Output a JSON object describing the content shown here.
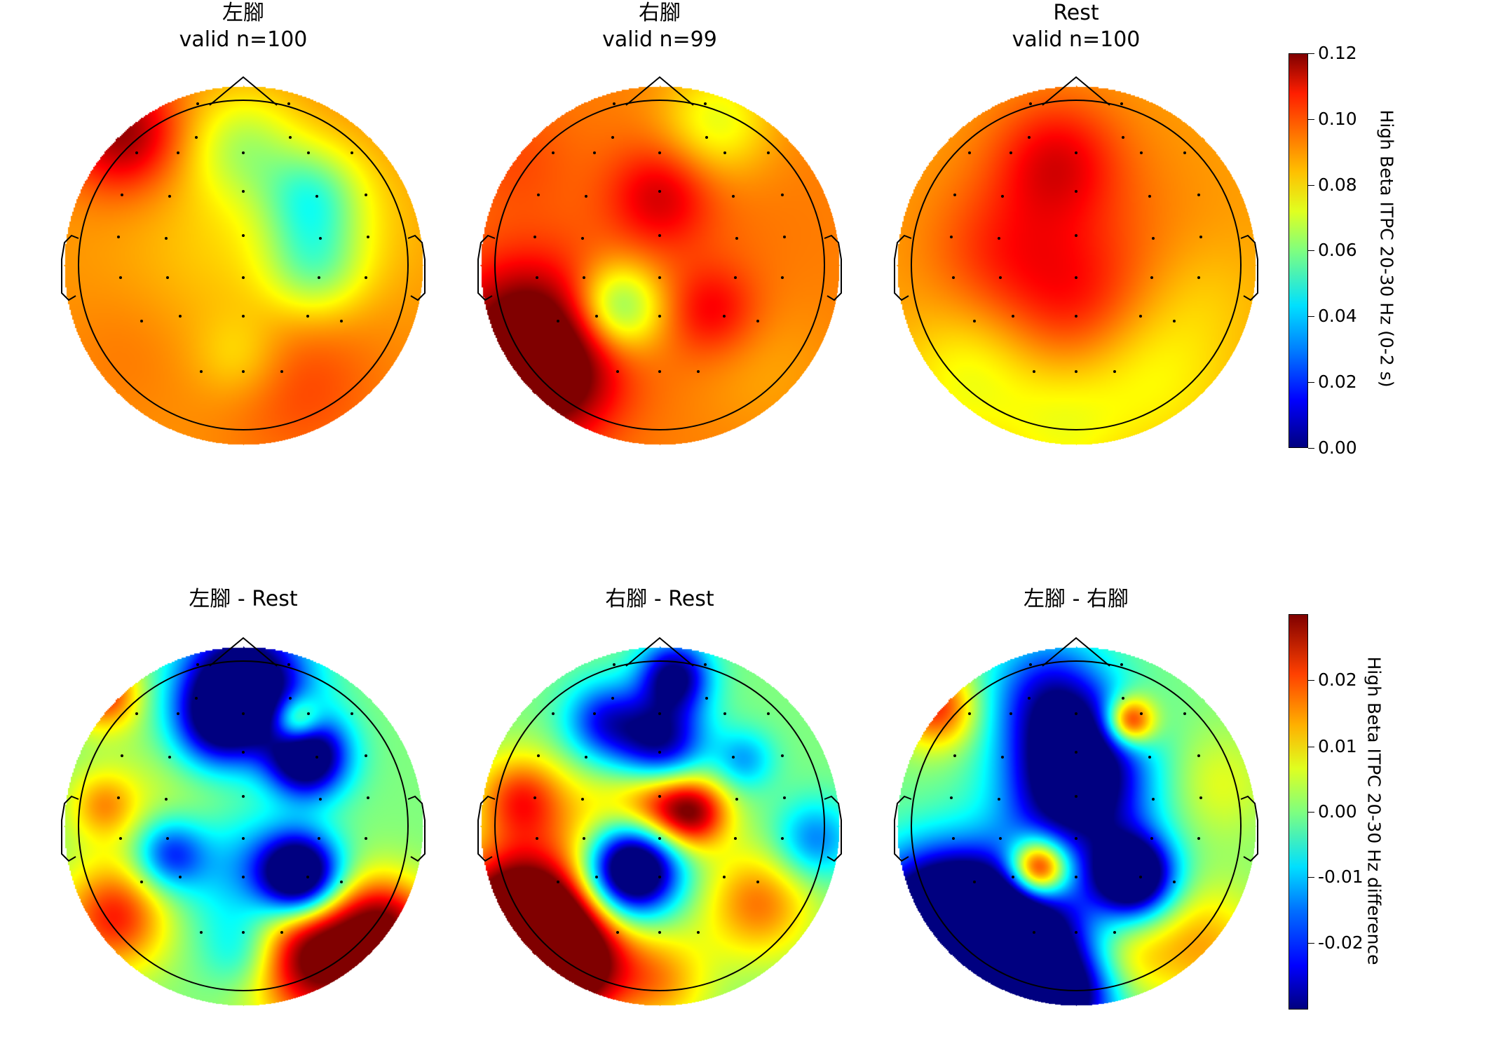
{
  "panels": [
    {
      "title_lines": [
        "左腳",
        "valid n=100"
      ],
      "map": "pos",
      "variant": 0
    },
    {
      "title_lines": [
        "右腳",
        "valid n=99"
      ],
      "map": "pos",
      "variant": 1
    },
    {
      "title_lines": [
        "Rest",
        "valid n=100"
      ],
      "map": "pos",
      "variant": 2
    },
    {
      "title_lines": [
        "左腳 - Rest"
      ],
      "map": "diff",
      "variant": 3
    },
    {
      "title_lines": [
        "右腳 - Rest"
      ],
      "map": "diff",
      "variant": 4
    },
    {
      "title_lines": [
        "左腳 - 右腳"
      ],
      "map": "diff",
      "variant": 5
    }
  ],
  "colorbars": [
    {
      "label": "High Beta ITPC 20-30 Hz (0-2 s)",
      "ticks": [
        "0.12",
        "0.10",
        "0.08",
        "0.06",
        "0.04",
        "0.02",
        "0.00"
      ],
      "range": [
        0.0,
        0.12
      ]
    },
    {
      "label": "High Beta ITPC 20-30 Hz difference",
      "ticks": [
        "0.02",
        "0.01",
        "0.00",
        "-0.01",
        "-0.02"
      ],
      "range": [
        -0.029,
        0.029
      ]
    }
  ],
  "chart_data": {
    "type": "heatmap",
    "subtype": "EEG scalp topomap (6 panels, 2 rows)",
    "colormap": "jet",
    "panels": [
      {
        "title": "左腳",
        "subtitle": "valid n=100",
        "value_range": [
          0.0,
          0.12
        ]
      },
      {
        "title": "右腳",
        "subtitle": "valid n=99",
        "value_range": [
          0.0,
          0.12
        ]
      },
      {
        "title": "Rest",
        "subtitle": "valid n=100",
        "value_range": [
          0.0,
          0.12
        ]
      },
      {
        "title": "左腳 - Rest",
        "value_range": [
          -0.029,
          0.029
        ]
      },
      {
        "title": "右腳 - Rest",
        "value_range": [
          -0.029,
          0.029
        ]
      },
      {
        "title": "左腳 - 右腳",
        "value_range": [
          -0.029,
          0.029
        ]
      }
    ]
  }
}
